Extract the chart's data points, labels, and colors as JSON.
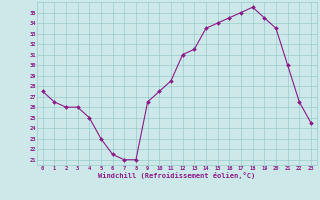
{
  "x": [
    0,
    1,
    2,
    3,
    4,
    5,
    6,
    7,
    8,
    9,
    10,
    11,
    12,
    13,
    14,
    15,
    16,
    17,
    18,
    19,
    20,
    21,
    22,
    23
  ],
  "y": [
    27.5,
    26.5,
    26.0,
    26.0,
    25.0,
    23.0,
    21.5,
    21.0,
    21.0,
    26.5,
    27.5,
    28.5,
    31.0,
    31.5,
    33.5,
    34.0,
    34.5,
    35.0,
    35.5,
    34.5,
    33.5,
    30.0,
    26.5,
    24.5
  ],
  "xlim": [
    -0.5,
    23.5
  ],
  "ylim": [
    20.5,
    36.0
  ],
  "yticks": [
    21,
    22,
    23,
    24,
    25,
    26,
    27,
    28,
    29,
    30,
    31,
    32,
    33,
    34,
    35
  ],
  "xticks": [
    0,
    1,
    2,
    3,
    4,
    5,
    6,
    7,
    8,
    9,
    10,
    11,
    12,
    13,
    14,
    15,
    16,
    17,
    18,
    19,
    20,
    21,
    22,
    23
  ],
  "xlabel": "Windchill (Refroidissement éolien,°C)",
  "line_color": "#8b1a8b",
  "marker_color": "#8b1a8b",
  "bg_color": "#cce8e8",
  "grid_color": "#99cccc",
  "tick_label_color": "#8b1a8b",
  "axis_label_color": "#8b1a8b"
}
